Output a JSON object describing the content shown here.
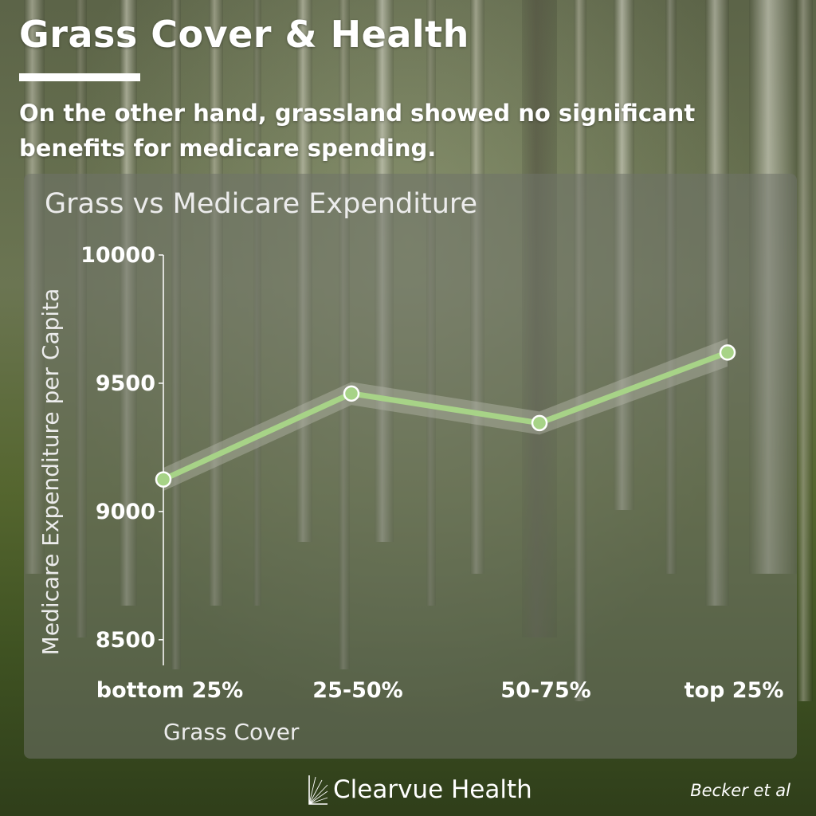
{
  "header": {
    "title": "Grass Cover & Health",
    "subtitle": "On the other hand, grassland showed no significant benefits for medicare spending."
  },
  "footer": {
    "brand": "Clearvue Health",
    "credit": "Becker et al"
  },
  "colors": {
    "line": "#a7d387",
    "band": "#b4b6a8",
    "axis": "#ffffff",
    "point_fill": "#a7d387",
    "point_stroke": "#ffffff"
  },
  "chart_data": {
    "type": "line",
    "title": "Grass vs Medicare Expenditure",
    "xlabel": "Grass Cover",
    "ylabel": "Medicare Expenditure per Capita",
    "categories": [
      "bottom 25%",
      "25-50%",
      "50-75%",
      "top 25%"
    ],
    "series": [
      {
        "values": [
          9125,
          9460,
          9345,
          9620
        ]
      }
    ],
    "band": {
      "lower": [
        9080,
        9415,
        9300,
        9565
      ],
      "upper": [
        9170,
        9505,
        9390,
        9675
      ]
    },
    "yticks": [
      8500,
      9000,
      9500,
      10000
    ],
    "ylim": [
      8400,
      10000
    ],
    "grid": false,
    "legend": "none"
  }
}
